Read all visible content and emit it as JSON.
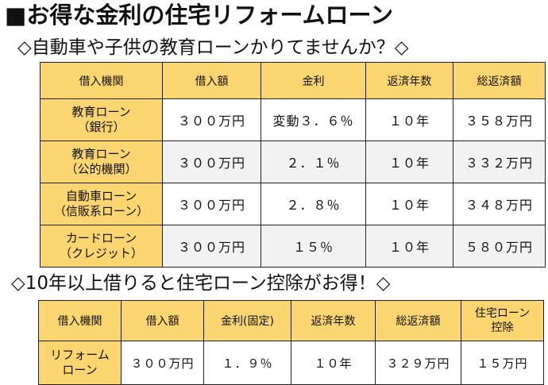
{
  "title": "■お得な金利の住宅リフォームローン",
  "section1": {
    "heading": "◇自動車や子供の教育ローンかりてませんか？◇",
    "headers": [
      "借入機関",
      "借入額",
      "金利",
      "返済年数",
      "総返済額"
    ],
    "rows": [
      {
        "label": [
          "教育ローン",
          "（銀行）"
        ],
        "amount": "３００万円",
        "rate": "変動３．６％",
        "years": "１０年",
        "total": "３５８万円"
      },
      {
        "label": [
          "教育ローン",
          "（公的機関）"
        ],
        "amount": "３００万円",
        "rate": "２．１％",
        "years": "１０年",
        "total": "３３２万円"
      },
      {
        "label": [
          "自動車ローン",
          "（信販系ローン）"
        ],
        "amount": "３００万円",
        "rate": "２．８％",
        "years": "１０年",
        "total": "３４８万円"
      },
      {
        "label": [
          "カードローン",
          "（クレジット）"
        ],
        "amount": "３００万円",
        "rate": "１５％",
        "years": "１０年",
        "total": "５８０万円"
      }
    ]
  },
  "section2": {
    "heading": "◇10年以上借りると住宅ローン控除がお得！◇",
    "headers": [
      "借入機関",
      "借入額",
      "金利(固定)",
      "返済年数",
      "総返済額",
      [
        "住宅ローン",
        "控除"
      ]
    ],
    "row": {
      "label": [
        "リフォーム",
        "ローン"
      ],
      "amount": "３００万円",
      "rate": "１．９％",
      "years": "１０年",
      "total": "３２９万円",
      "deduction": "１５万円"
    }
  }
}
